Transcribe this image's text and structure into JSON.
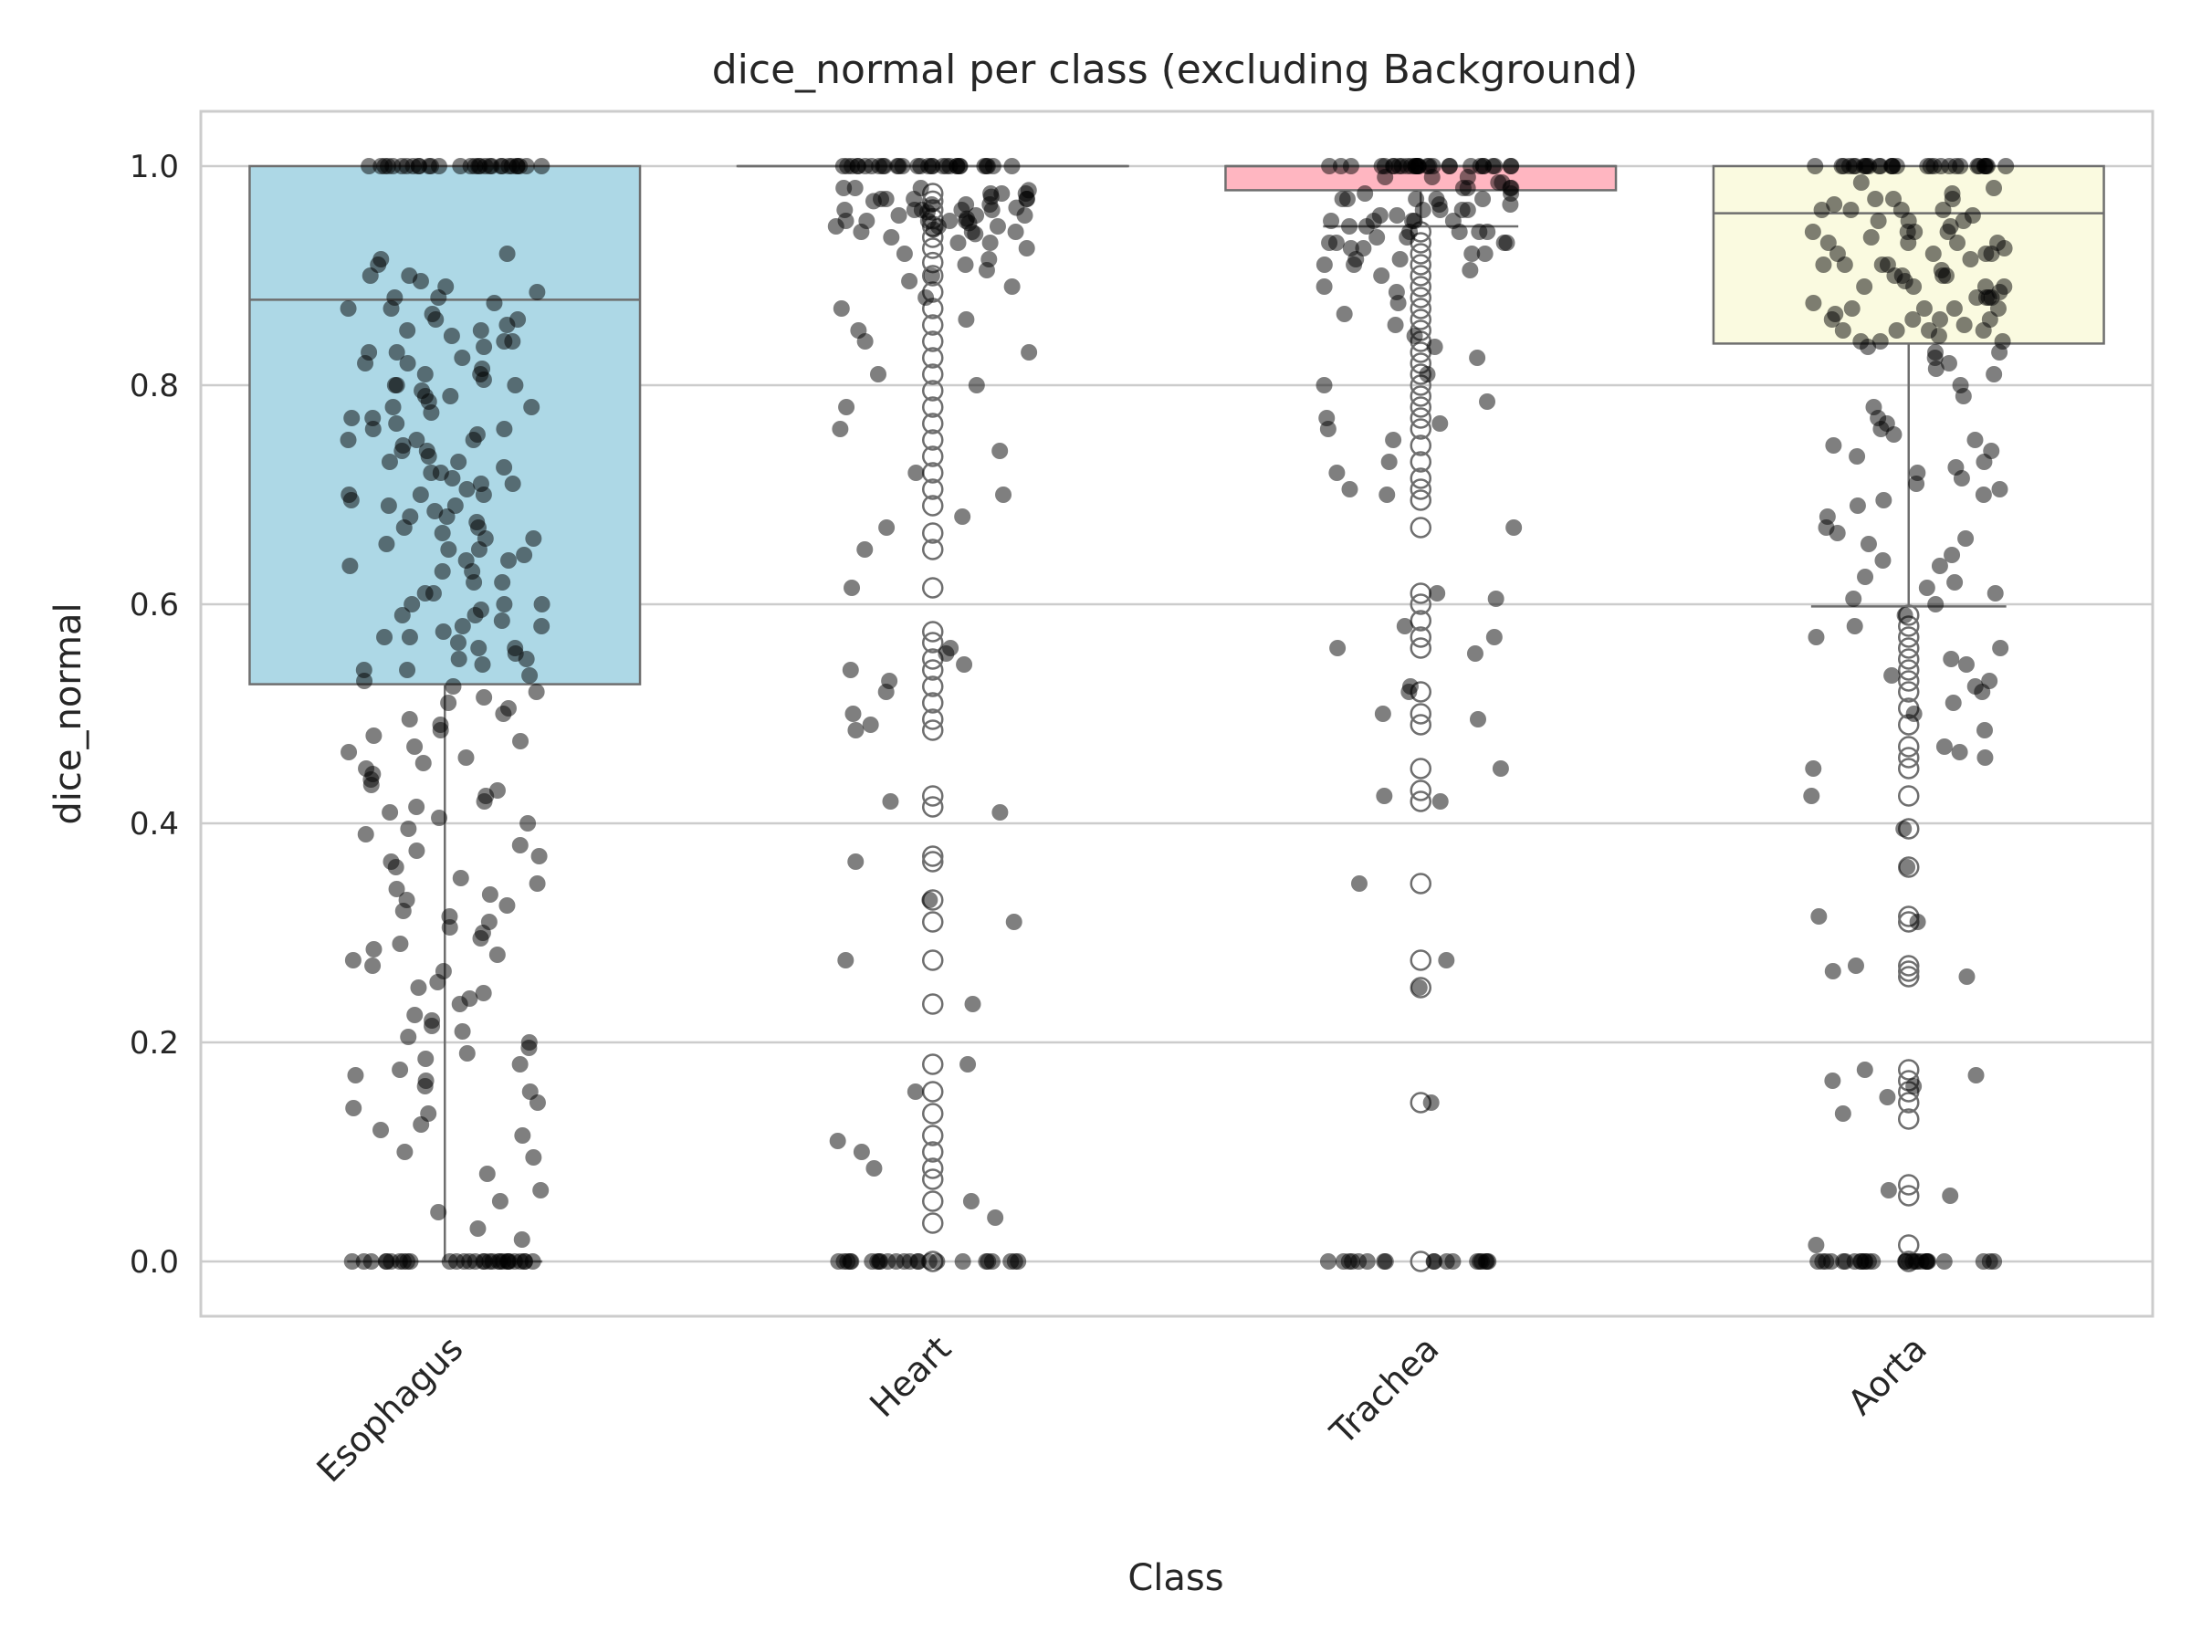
{
  "chart_data": {
    "type": "box",
    "title": "dice_normal per class (excluding Background)",
    "xlabel": "Class",
    "ylabel": "dice_normal",
    "ylim": [
      -0.05,
      1.05
    ],
    "yticks": [
      0.0,
      0.2,
      0.4,
      0.6,
      0.8,
      1.0
    ],
    "ytick_labels": [
      "0.0",
      "0.2",
      "0.4",
      "0.6",
      "0.8",
      "1.0"
    ],
    "grid": "horizontal",
    "categories": [
      "Esophagus",
      "Heart",
      "Trachea",
      "Aorta"
    ],
    "boxes": [
      {
        "category": "Esophagus",
        "color": "#add8e6",
        "q1": 0.527,
        "median": 0.878,
        "q3": 1.0,
        "whisker_low": 0.0,
        "whisker_high": 1.0,
        "outliers": []
      },
      {
        "category": "Heart",
        "color": "#90ee90",
        "q1": 1.0,
        "median": 1.0,
        "q3": 1.0,
        "whisker_low": 1.0,
        "whisker_high": 1.0,
        "outliers": [
          0.975,
          0.968,
          0.96,
          0.952,
          0.945,
          0.935,
          0.925,
          0.912,
          0.9,
          0.885,
          0.87,
          0.855,
          0.84,
          0.825,
          0.81,
          0.795,
          0.78,
          0.765,
          0.75,
          0.735,
          0.72,
          0.705,
          0.69,
          0.665,
          0.65,
          0.615,
          0.575,
          0.565,
          0.55,
          0.54,
          0.525,
          0.51,
          0.495,
          0.485,
          0.425,
          0.415,
          0.37,
          0.365,
          0.33,
          0.31,
          0.275,
          0.235,
          0.18,
          0.155,
          0.135,
          0.115,
          0.1,
          0.085,
          0.075,
          0.055,
          0.035,
          0.0
        ]
      },
      {
        "category": "Trachea",
        "color": "#ffb6c1",
        "q1": 0.978,
        "median": 1.0,
        "q3": 1.0,
        "whisker_low": 0.945,
        "whisker_high": 1.0,
        "outliers": [
          0.94,
          0.93,
          0.92,
          0.91,
          0.9,
          0.89,
          0.88,
          0.87,
          0.86,
          0.85,
          0.84,
          0.83,
          0.82,
          0.81,
          0.8,
          0.79,
          0.78,
          0.77,
          0.76,
          0.745,
          0.73,
          0.715,
          0.705,
          0.695,
          0.67,
          0.61,
          0.6,
          0.585,
          0.57,
          0.56,
          0.52,
          0.5,
          0.49,
          0.45,
          0.43,
          0.42,
          0.345,
          0.275,
          0.25,
          0.145,
          0.0
        ]
      },
      {
        "category": "Aorta",
        "color": "#fafae0",
        "q1": 0.838,
        "median": 0.957,
        "q3": 1.0,
        "whisker_low": 0.598,
        "whisker_high": 1.0,
        "outliers": [
          0.59,
          0.58,
          0.57,
          0.56,
          0.55,
          0.54,
          0.53,
          0.52,
          0.505,
          0.49,
          0.47,
          0.46,
          0.45,
          0.425,
          0.395,
          0.36,
          0.315,
          0.31,
          0.27,
          0.265,
          0.26,
          0.175,
          0.165,
          0.155,
          0.145,
          0.13,
          0.07,
          0.06,
          0.015,
          0.0
        ]
      }
    ],
    "strip": {
      "color": "#000000",
      "opacity": 0.5,
      "series": [
        {
          "category": "Esophagus",
          "values": [
            1.0,
            1.0,
            1.0,
            1.0,
            1.0,
            1.0,
            1.0,
            1.0,
            1.0,
            1.0,
            1.0,
            1.0,
            1.0,
            1.0,
            1.0,
            1.0,
            1.0,
            1.0,
            1.0,
            1.0,
            1.0,
            1.0,
            1.0,
            1.0,
            1.0,
            1.0,
            1.0,
            1.0,
            1.0,
            1.0,
            0.92,
            0.915,
            0.91,
            0.9,
            0.895,
            0.89,
            0.885,
            0.88,
            0.875,
            0.87,
            0.865,
            0.86,
            0.855,
            0.85,
            0.845,
            0.84,
            0.835,
            0.83,
            0.825,
            0.82,
            0.815,
            0.81,
            0.805,
            0.8,
            0.795,
            0.79,
            0.785,
            0.78,
            0.775,
            0.77,
            0.765,
            0.76,
            0.755,
            0.75,
            0.745,
            0.74,
            0.735,
            0.73,
            0.725,
            0.72,
            0.715,
            0.71,
            0.705,
            0.7,
            0.695,
            0.69,
            0.685,
            0.68,
            0.675,
            0.67,
            0.665,
            0.66,
            0.655,
            0.65,
            0.645,
            0.64,
            0.635,
            0.63,
            0.62,
            0.61,
            0.6,
            0.595,
            0.59,
            0.585,
            0.58,
            0.575,
            0.57,
            0.565,
            0.56,
            0.555,
            0.55,
            0.545,
            0.54,
            0.535,
            0.53,
            0.88,
            0.86,
            0.84,
            0.82,
            0.8,
            0.78,
            0.76,
            0.74,
            0.72,
            0.7,
            0.68,
            0.66,
            0.64,
            0.62,
            0.6,
            0.58,
            0.56,
            0.54,
            0.87,
            0.83,
            0.79,
            0.75,
            0.71,
            0.67,
            0.63,
            0.59,
            0.55,
            0.81,
            0.77,
            0.73,
            0.69,
            0.65,
            0.61,
            0.57,
            0.85,
            0.75,
            0.7,
            0.8,
            0.6,
            0.9,
            0.525,
            0.52,
            0.515,
            0.51,
            0.505,
            0.5,
            0.495,
            0.49,
            0.485,
            0.48,
            0.475,
            0.47,
            0.465,
            0.46,
            0.455,
            0.45,
            0.445,
            0.44,
            0.435,
            0.43,
            0.425,
            0.42,
            0.415,
            0.41,
            0.405,
            0.4,
            0.395,
            0.39,
            0.38,
            0.375,
            0.37,
            0.365,
            0.36,
            0.35,
            0.345,
            0.34,
            0.335,
            0.33,
            0.325,
            0.32,
            0.315,
            0.31,
            0.305,
            0.3,
            0.295,
            0.29,
            0.285,
            0.28,
            0.275,
            0.27,
            0.265,
            0.255,
            0.25,
            0.245,
            0.24,
            0.235,
            0.225,
            0.22,
            0.215,
            0.21,
            0.205,
            0.2,
            0.195,
            0.19,
            0.185,
            0.18,
            0.175,
            0.17,
            0.165,
            0.16,
            0.155,
            0.145,
            0.14,
            0.135,
            0.125,
            0.12,
            0.115,
            0.1,
            0.095,
            0.08,
            0.065,
            0.055,
            0.045,
            0.03,
            0.02,
            0.0,
            0.0,
            0.0,
            0.0,
            0.0,
            0.0,
            0.0,
            0.0,
            0.0,
            0.0,
            0.0,
            0.0,
            0.0,
            0.0,
            0.0,
            0.0,
            0.0,
            0.0,
            0.0,
            0.0,
            0.0,
            0.0,
            0.0,
            0.0,
            0.0,
            0.0,
            0.0,
            0.0,
            0.0,
            0.0
          ]
        },
        {
          "category": "Heart",
          "values": [
            1.0,
            1.0,
            1.0,
            1.0,
            1.0,
            1.0,
            1.0,
            1.0,
            1.0,
            1.0,
            1.0,
            1.0,
            1.0,
            1.0,
            1.0,
            1.0,
            1.0,
            1.0,
            1.0,
            1.0,
            1.0,
            1.0,
            1.0,
            1.0,
            1.0,
            1.0,
            1.0,
            1.0,
            1.0,
            1.0,
            0.98,
            0.978,
            0.975,
            0.972,
            0.97,
            0.968,
            0.965,
            0.962,
            0.96,
            0.958,
            0.955,
            0.952,
            0.95,
            0.948,
            0.945,
            0.942,
            0.94,
            0.938,
            0.935,
            0.97,
            0.96,
            0.95,
            0.975,
            0.965,
            0.955,
            0.945,
            0.98,
            0.97,
            0.96,
            0.95,
            0.975,
            0.965,
            0.955,
            0.945,
            0.97,
            0.96,
            0.95,
            0.94,
            0.93,
            0.92,
            0.91,
            0.9,
            0.89,
            0.88,
            0.87,
            0.86,
            0.85,
            0.84,
            0.83,
            0.97,
            0.96,
            0.95,
            0.94,
            0.98,
            0.93,
            0.925,
            0.915,
            0.905,
            0.895,
            0.81,
            0.8,
            0.78,
            0.76,
            0.74,
            0.72,
            0.7,
            0.68,
            0.67,
            0.65,
            0.615,
            0.56,
            0.555,
            0.545,
            0.54,
            0.53,
            0.52,
            0.5,
            0.49,
            0.485,
            0.42,
            0.41,
            0.365,
            0.33,
            0.31,
            0.275,
            0.235,
            0.18,
            0.155,
            0.11,
            0.1,
            0.085,
            0.055,
            0.04,
            0.0,
            0.0,
            0.0,
            0.0,
            0.0,
            0.0,
            0.0,
            0.0,
            0.0,
            0.0,
            0.0,
            0.0,
            0.0,
            0.0,
            0.0,
            0.0,
            0.0,
            0.0,
            0.0,
            0.0,
            0.0,
            0.0,
            0.0,
            0.0
          ]
        },
        {
          "category": "Trachea",
          "values": [
            1.0,
            1.0,
            1.0,
            1.0,
            1.0,
            1.0,
            1.0,
            1.0,
            1.0,
            1.0,
            1.0,
            1.0,
            1.0,
            1.0,
            1.0,
            1.0,
            1.0,
            1.0,
            1.0,
            1.0,
            1.0,
            1.0,
            1.0,
            1.0,
            1.0,
            1.0,
            1.0,
            1.0,
            1.0,
            1.0,
            0.99,
            0.985,
            0.98,
            0.975,
            0.97,
            0.965,
            0.96,
            0.955,
            0.95,
            0.945,
            0.94,
            0.935,
            0.93,
            0.925,
            0.92,
            0.915,
            0.91,
            0.905,
            0.9,
            0.985,
            0.975,
            0.965,
            0.955,
            0.945,
            0.935,
            0.925,
            0.915,
            0.98,
            0.97,
            0.96,
            0.95,
            0.94,
            0.93,
            0.92,
            0.99,
            0.98,
            0.97,
            0.96,
            0.95,
            0.94,
            0.93,
            0.98,
            0.96,
            0.94,
            0.97,
            0.95,
            0.99,
            0.97,
            0.95,
            0.93,
            0.91,
            0.89,
            0.885,
            0.875,
            0.865,
            0.855,
            0.845,
            0.835,
            0.825,
            0.81,
            0.8,
            0.785,
            0.77,
            0.765,
            0.76,
            0.75,
            0.73,
            0.72,
            0.705,
            0.7,
            0.67,
            0.61,
            0.605,
            0.58,
            0.57,
            0.56,
            0.555,
            0.525,
            0.52,
            0.5,
            0.495,
            0.45,
            0.425,
            0.42,
            0.345,
            0.275,
            0.25,
            0.145,
            0.0,
            0.0,
            0.0,
            0.0,
            0.0,
            0.0,
            0.0,
            0.0,
            0.0,
            0.0,
            0.0,
            0.0,
            0.0,
            0.0,
            0.0,
            0.0,
            0.0,
            0.0
          ]
        },
        {
          "category": "Aorta",
          "values": [
            1.0,
            1.0,
            1.0,
            1.0,
            1.0,
            1.0,
            1.0,
            1.0,
            1.0,
            1.0,
            1.0,
            1.0,
            1.0,
            1.0,
            1.0,
            1.0,
            1.0,
            1.0,
            1.0,
            1.0,
            1.0,
            1.0,
            1.0,
            1.0,
            1.0,
            1.0,
            1.0,
            1.0,
            1.0,
            1.0,
            0.985,
            0.98,
            0.975,
            0.97,
            0.965,
            0.96,
            0.955,
            0.95,
            0.945,
            0.94,
            0.935,
            0.93,
            0.925,
            0.92,
            0.915,
            0.91,
            0.905,
            0.9,
            0.895,
            0.89,
            0.885,
            0.88,
            0.875,
            0.87,
            0.865,
            0.86,
            0.855,
            0.85,
            0.845,
            0.84,
            0.835,
            0.83,
            0.825,
            0.82,
            0.97,
            0.96,
            0.95,
            0.94,
            0.93,
            0.92,
            0.91,
            0.9,
            0.89,
            0.88,
            0.87,
            0.86,
            0.85,
            0.84,
            0.83,
            0.96,
            0.94,
            0.92,
            0.9,
            0.88,
            0.86,
            0.84,
            0.95,
            0.93,
            0.91,
            0.89,
            0.87,
            0.85,
            0.97,
            0.93,
            0.89,
            0.85,
            0.91,
            0.87,
            0.94,
            0.92,
            0.96,
            0.9,
            0.88,
            0.86,
            0.815,
            0.81,
            0.8,
            0.79,
            0.78,
            0.77,
            0.765,
            0.76,
            0.755,
            0.75,
            0.745,
            0.74,
            0.735,
            0.73,
            0.725,
            0.72,
            0.715,
            0.71,
            0.705,
            0.7,
            0.695,
            0.69,
            0.68,
            0.67,
            0.665,
            0.66,
            0.655,
            0.645,
            0.64,
            0.635,
            0.625,
            0.62,
            0.615,
            0.61,
            0.605,
            0.6,
            0.59,
            0.58,
            0.57,
            0.56,
            0.55,
            0.545,
            0.535,
            0.53,
            0.525,
            0.52,
            0.51,
            0.5,
            0.485,
            0.47,
            0.465,
            0.46,
            0.45,
            0.425,
            0.395,
            0.36,
            0.315,
            0.31,
            0.27,
            0.265,
            0.26,
            0.175,
            0.17,
            0.165,
            0.16,
            0.15,
            0.135,
            0.065,
            0.06,
            0.015,
            0.0,
            0.0,
            0.0,
            0.0,
            0.0,
            0.0,
            0.0,
            0.0,
            0.0,
            0.0,
            0.0,
            0.0,
            0.0,
            0.0,
            0.0,
            0.0,
            0.0,
            0.0,
            0.0,
            0.0,
            0.0,
            0.0,
            0.0,
            0.0,
            0.0,
            0.0,
            0.0,
            0.0
          ]
        }
      ]
    }
  }
}
